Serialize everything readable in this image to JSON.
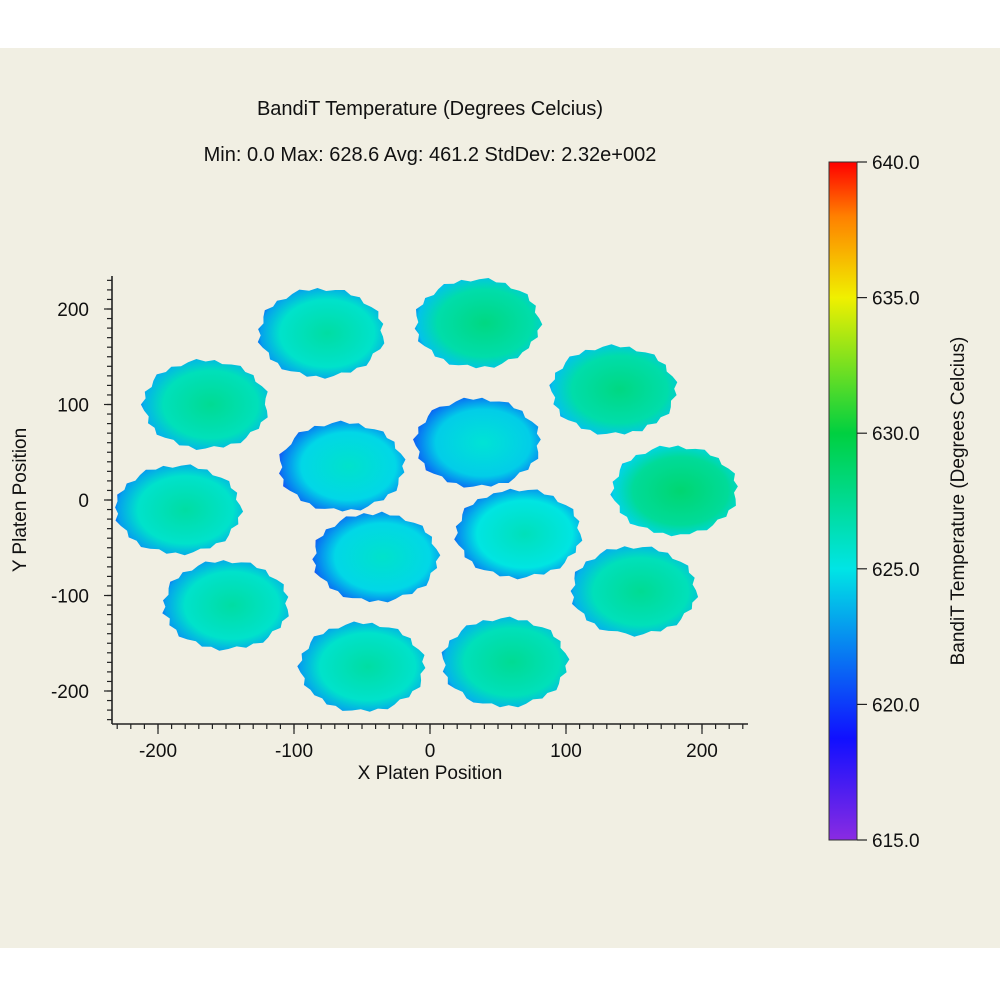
{
  "chart_data": {
    "type": "heatmap",
    "title": "BandiT Temperature (Degrees Celcius)",
    "subtitle": "Min: 0.0  Max: 628.6  Avg: 461.2  StdDev: 2.32e+002",
    "xlabel": "X Platen Position",
    "ylabel": "Y Platen Position",
    "xlim": [
      -235,
      235
    ],
    "ylim": [
      -235,
      235
    ],
    "xticks": [
      "-200",
      "-100",
      "0",
      "100",
      "200"
    ],
    "yticks": [
      "200",
      "100",
      "0",
      "-100",
      "-200"
    ],
    "colorbar": {
      "label": "BandiT Temperature (Degrees Celcius)",
      "range": [
        615,
        640
      ],
      "ticks": [
        "640.0",
        "635.0",
        "630.0",
        "625.0",
        "620.0",
        "615.0"
      ]
    },
    "wafers": [
      {
        "x": -165,
        "y": 100,
        "temp": 627.5
      },
      {
        "x": -80,
        "y": 175,
        "temp": 627.0
      },
      {
        "x": 35,
        "y": 185,
        "temp": 628.0
      },
      {
        "x": 135,
        "y": 115,
        "temp": 628.0
      },
      {
        "x": 180,
        "y": 10,
        "temp": 628.5
      },
      {
        "x": 150,
        "y": -95,
        "temp": 627.5
      },
      {
        "x": 55,
        "y": -170,
        "temp": 627.5
      },
      {
        "x": -50,
        "y": -175,
        "temp": 627.0
      },
      {
        "x": -150,
        "y": -110,
        "temp": 627.0
      },
      {
        "x": -185,
        "y": -10,
        "temp": 627.0
      },
      {
        "x": -65,
        "y": 35,
        "temp": 625.8
      },
      {
        "x": 35,
        "y": 60,
        "temp": 625.5
      },
      {
        "x": 65,
        "y": -35,
        "temp": 626.3
      },
      {
        "x": -40,
        "y": -60,
        "temp": 625.8
      }
    ]
  }
}
